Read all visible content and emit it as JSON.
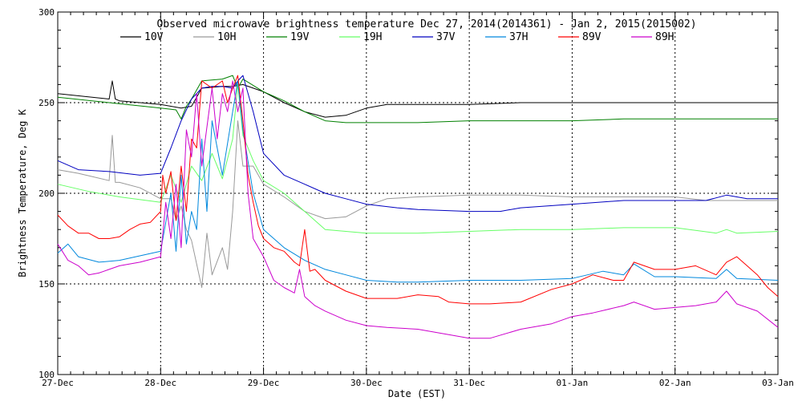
{
  "chart_data": {
    "type": "line",
    "title": "Observed microwave brightness temperature Dec 27, 2014(2014361) - Jan  2, 2015(2015002)",
    "xlabel": "Date (EST)",
    "ylabel": "Brightness Temperature, Deg K",
    "xlim": [
      0,
      7
    ],
    "ylim": [
      100,
      300
    ],
    "x_ticks": [
      {
        "x": 0,
        "label": "27-Dec"
      },
      {
        "x": 1,
        "label": "28-Dec"
      },
      {
        "x": 2,
        "label": "29-Dec"
      },
      {
        "x": 3,
        "label": "30-Dec"
      },
      {
        "x": 4,
        "label": "31-Dec"
      },
      {
        "x": 5,
        "label": "01-Jan"
      },
      {
        "x": 6,
        "label": "02-Jan"
      },
      {
        "x": 7,
        "label": "03-Jan"
      }
    ],
    "y_ticks": [
      100,
      150,
      200,
      250,
      300
    ],
    "grid": "dotted",
    "legend_position": "top",
    "series": [
      {
        "name": "10V",
        "color": "#000000",
        "x": [
          0,
          0.5,
          0.53,
          0.56,
          0.6,
          1.0,
          1.2,
          1.3,
          1.4,
          1.6,
          1.7,
          1.8,
          2.0,
          2.2,
          2.4,
          2.6,
          2.8,
          3.0,
          3.2,
          3.5,
          4.0,
          4.5,
          5.0,
          5.5,
          6.0,
          6.5,
          7.0
        ],
        "values": [
          255,
          252,
          262,
          252,
          251,
          249,
          247,
          248,
          258,
          259,
          259,
          260,
          256,
          250,
          245,
          242,
          243,
          247,
          249,
          249,
          249,
          250,
          250,
          250,
          250,
          250,
          250
        ]
      },
      {
        "name": "10H",
        "color": "#999999",
        "x": [
          0,
          0.2,
          0.5,
          0.53,
          0.56,
          0.6,
          0.8,
          1.0,
          1.1,
          1.15,
          1.2,
          1.25,
          1.3,
          1.4,
          1.45,
          1.5,
          1.6,
          1.65,
          1.7,
          1.75,
          1.8,
          1.9,
          2.0,
          2.2,
          2.4,
          2.6,
          2.8,
          3.0,
          3.2,
          3.5,
          4.0,
          4.5,
          5.0,
          5.5,
          6.0,
          6.3,
          6.5,
          7.0
        ],
        "values": [
          213,
          211,
          207,
          232,
          206,
          206,
          203,
          197,
          197,
          185,
          193,
          180,
          174,
          148,
          178,
          155,
          170,
          158,
          190,
          240,
          215,
          215,
          205,
          198,
          190,
          186,
          187,
          193,
          197,
          198,
          199,
          199,
          198,
          198,
          198,
          196,
          196,
          196
        ]
      },
      {
        "name": "19V",
        "color": "#008000",
        "x": [
          0,
          0.5,
          1.0,
          1.15,
          1.2,
          1.25,
          1.3,
          1.4,
          1.6,
          1.7,
          1.75,
          1.8,
          2.0,
          2.2,
          2.4,
          2.6,
          2.8,
          3.0,
          3.5,
          4.0,
          4.5,
          5.0,
          5.5,
          6.0,
          6.5,
          7.0
        ],
        "values": [
          253,
          250,
          247,
          246,
          241,
          248,
          252,
          262,
          263,
          265,
          258,
          263,
          256,
          251,
          245,
          240,
          239,
          239,
          239,
          240,
          240,
          240,
          241,
          241,
          241,
          241
        ]
      },
      {
        "name": "19H",
        "color": "#66ff66",
        "x": [
          0,
          0.3,
          0.6,
          1.0,
          1.1,
          1.2,
          1.3,
          1.4,
          1.5,
          1.6,
          1.7,
          1.75,
          1.8,
          1.9,
          2.0,
          2.2,
          2.4,
          2.6,
          3.0,
          3.5,
          4.0,
          4.5,
          5.0,
          5.5,
          6.0,
          6.4,
          6.5,
          6.6,
          7.0
        ],
        "values": [
          205,
          201,
          198,
          195,
          210,
          195,
          215,
          207,
          222,
          208,
          230,
          260,
          232,
          218,
          207,
          200,
          190,
          180,
          178,
          178,
          179,
          180,
          180,
          181,
          181,
          178,
          180,
          178,
          179
        ]
      },
      {
        "name": "37V",
        "color": "#0000c0",
        "x": [
          0,
          0.2,
          0.5,
          0.8,
          1.0,
          1.1,
          1.2,
          1.3,
          1.4,
          1.5,
          1.6,
          1.7,
          1.75,
          1.8,
          1.9,
          2.0,
          2.2,
          2.4,
          2.6,
          2.8,
          3.0,
          3.3,
          3.5,
          4.0,
          4.3,
          4.5,
          5.0,
          5.5,
          6.0,
          6.3,
          6.5,
          6.7,
          7.0
        ],
        "values": [
          218,
          213,
          212,
          210,
          211,
          225,
          240,
          252,
          258,
          259,
          259,
          258,
          262,
          265,
          245,
          222,
          210,
          205,
          200,
          197,
          194,
          192,
          191,
          190,
          190,
          192,
          194,
          196,
          196,
          196,
          199,
          197,
          197
        ]
      },
      {
        "name": "37H",
        "color": "#0088dd",
        "x": [
          0,
          0.1,
          0.2,
          0.4,
          0.6,
          1.0,
          1.1,
          1.15,
          1.2,
          1.25,
          1.3,
          1.35,
          1.4,
          1.45,
          1.5,
          1.6,
          1.7,
          1.75,
          1.8,
          1.9,
          2.0,
          2.2,
          2.4,
          2.6,
          2.8,
          3.0,
          3.3,
          3.5,
          4.0,
          4.5,
          5.0,
          5.3,
          5.5,
          5.6,
          5.8,
          6.0,
          6.4,
          6.5,
          6.6,
          7.0
        ],
        "values": [
          167,
          172,
          165,
          162,
          163,
          168,
          200,
          168,
          210,
          172,
          190,
          180,
          230,
          190,
          240,
          210,
          245,
          262,
          235,
          200,
          180,
          170,
          163,
          158,
          155,
          152,
          151,
          151,
          152,
          152,
          153,
          157,
          155,
          161,
          154,
          154,
          153,
          158,
          153,
          152
        ]
      },
      {
        "name": "89V",
        "color": "#ff0000",
        "x": [
          0,
          0.1,
          0.2,
          0.3,
          0.4,
          0.5,
          0.6,
          0.7,
          0.8,
          0.9,
          1.0,
          1.02,
          1.05,
          1.1,
          1.15,
          1.2,
          1.25,
          1.3,
          1.35,
          1.4,
          1.5,
          1.6,
          1.65,
          1.7,
          1.75,
          1.8,
          1.85,
          1.9,
          1.95,
          2.0,
          2.1,
          2.2,
          2.3,
          2.35,
          2.4,
          2.45,
          2.5,
          2.6,
          2.8,
          3.0,
          3.3,
          3.5,
          3.7,
          3.8,
          4.0,
          4.2,
          4.5,
          4.8,
          5.0,
          5.2,
          5.4,
          5.5,
          5.6,
          5.8,
          6.0,
          6.2,
          6.4,
          6.5,
          6.6,
          6.7,
          6.8,
          6.9,
          7.0
        ],
        "values": [
          188,
          182,
          178,
          178,
          175,
          175,
          176,
          180,
          183,
          184,
          190,
          210,
          200,
          212,
          185,
          215,
          190,
          230,
          225,
          262,
          258,
          262,
          250,
          258,
          265,
          240,
          210,
          195,
          182,
          175,
          170,
          168,
          162,
          160,
          180,
          157,
          158,
          152,
          146,
          142,
          142,
          144,
          143,
          140,
          139,
          139,
          140,
          147,
          150,
          155,
          152,
          152,
          162,
          158,
          158,
          160,
          155,
          162,
          165,
          160,
          155,
          148,
          143
        ]
      },
      {
        "name": "89H",
        "color": "#cc00cc",
        "x": [
          0,
          0.1,
          0.2,
          0.3,
          0.4,
          0.5,
          0.6,
          0.8,
          1.0,
          1.05,
          1.1,
          1.15,
          1.2,
          1.25,
          1.3,
          1.35,
          1.4,
          1.5,
          1.55,
          1.6,
          1.65,
          1.7,
          1.75,
          1.8,
          1.85,
          1.9,
          2.0,
          2.1,
          2.2,
          2.3,
          2.35,
          2.4,
          2.5,
          2.6,
          2.8,
          3.0,
          3.2,
          3.5,
          3.8,
          4.0,
          4.2,
          4.5,
          4.8,
          5.0,
          5.2,
          5.5,
          5.6,
          5.8,
          6.0,
          6.2,
          6.4,
          6.5,
          6.6,
          6.8,
          7.0
        ],
        "values": [
          172,
          163,
          160,
          155,
          156,
          158,
          160,
          162,
          165,
          195,
          175,
          205,
          170,
          235,
          220,
          255,
          215,
          258,
          230,
          255,
          245,
          262,
          245,
          258,
          200,
          175,
          165,
          152,
          148,
          145,
          158,
          143,
          138,
          135,
          130,
          127,
          126,
          125,
          122,
          120,
          120,
          125,
          128,
          132,
          134,
          138,
          140,
          136,
          137,
          138,
          140,
          146,
          139,
          135,
          126
        ]
      }
    ]
  }
}
